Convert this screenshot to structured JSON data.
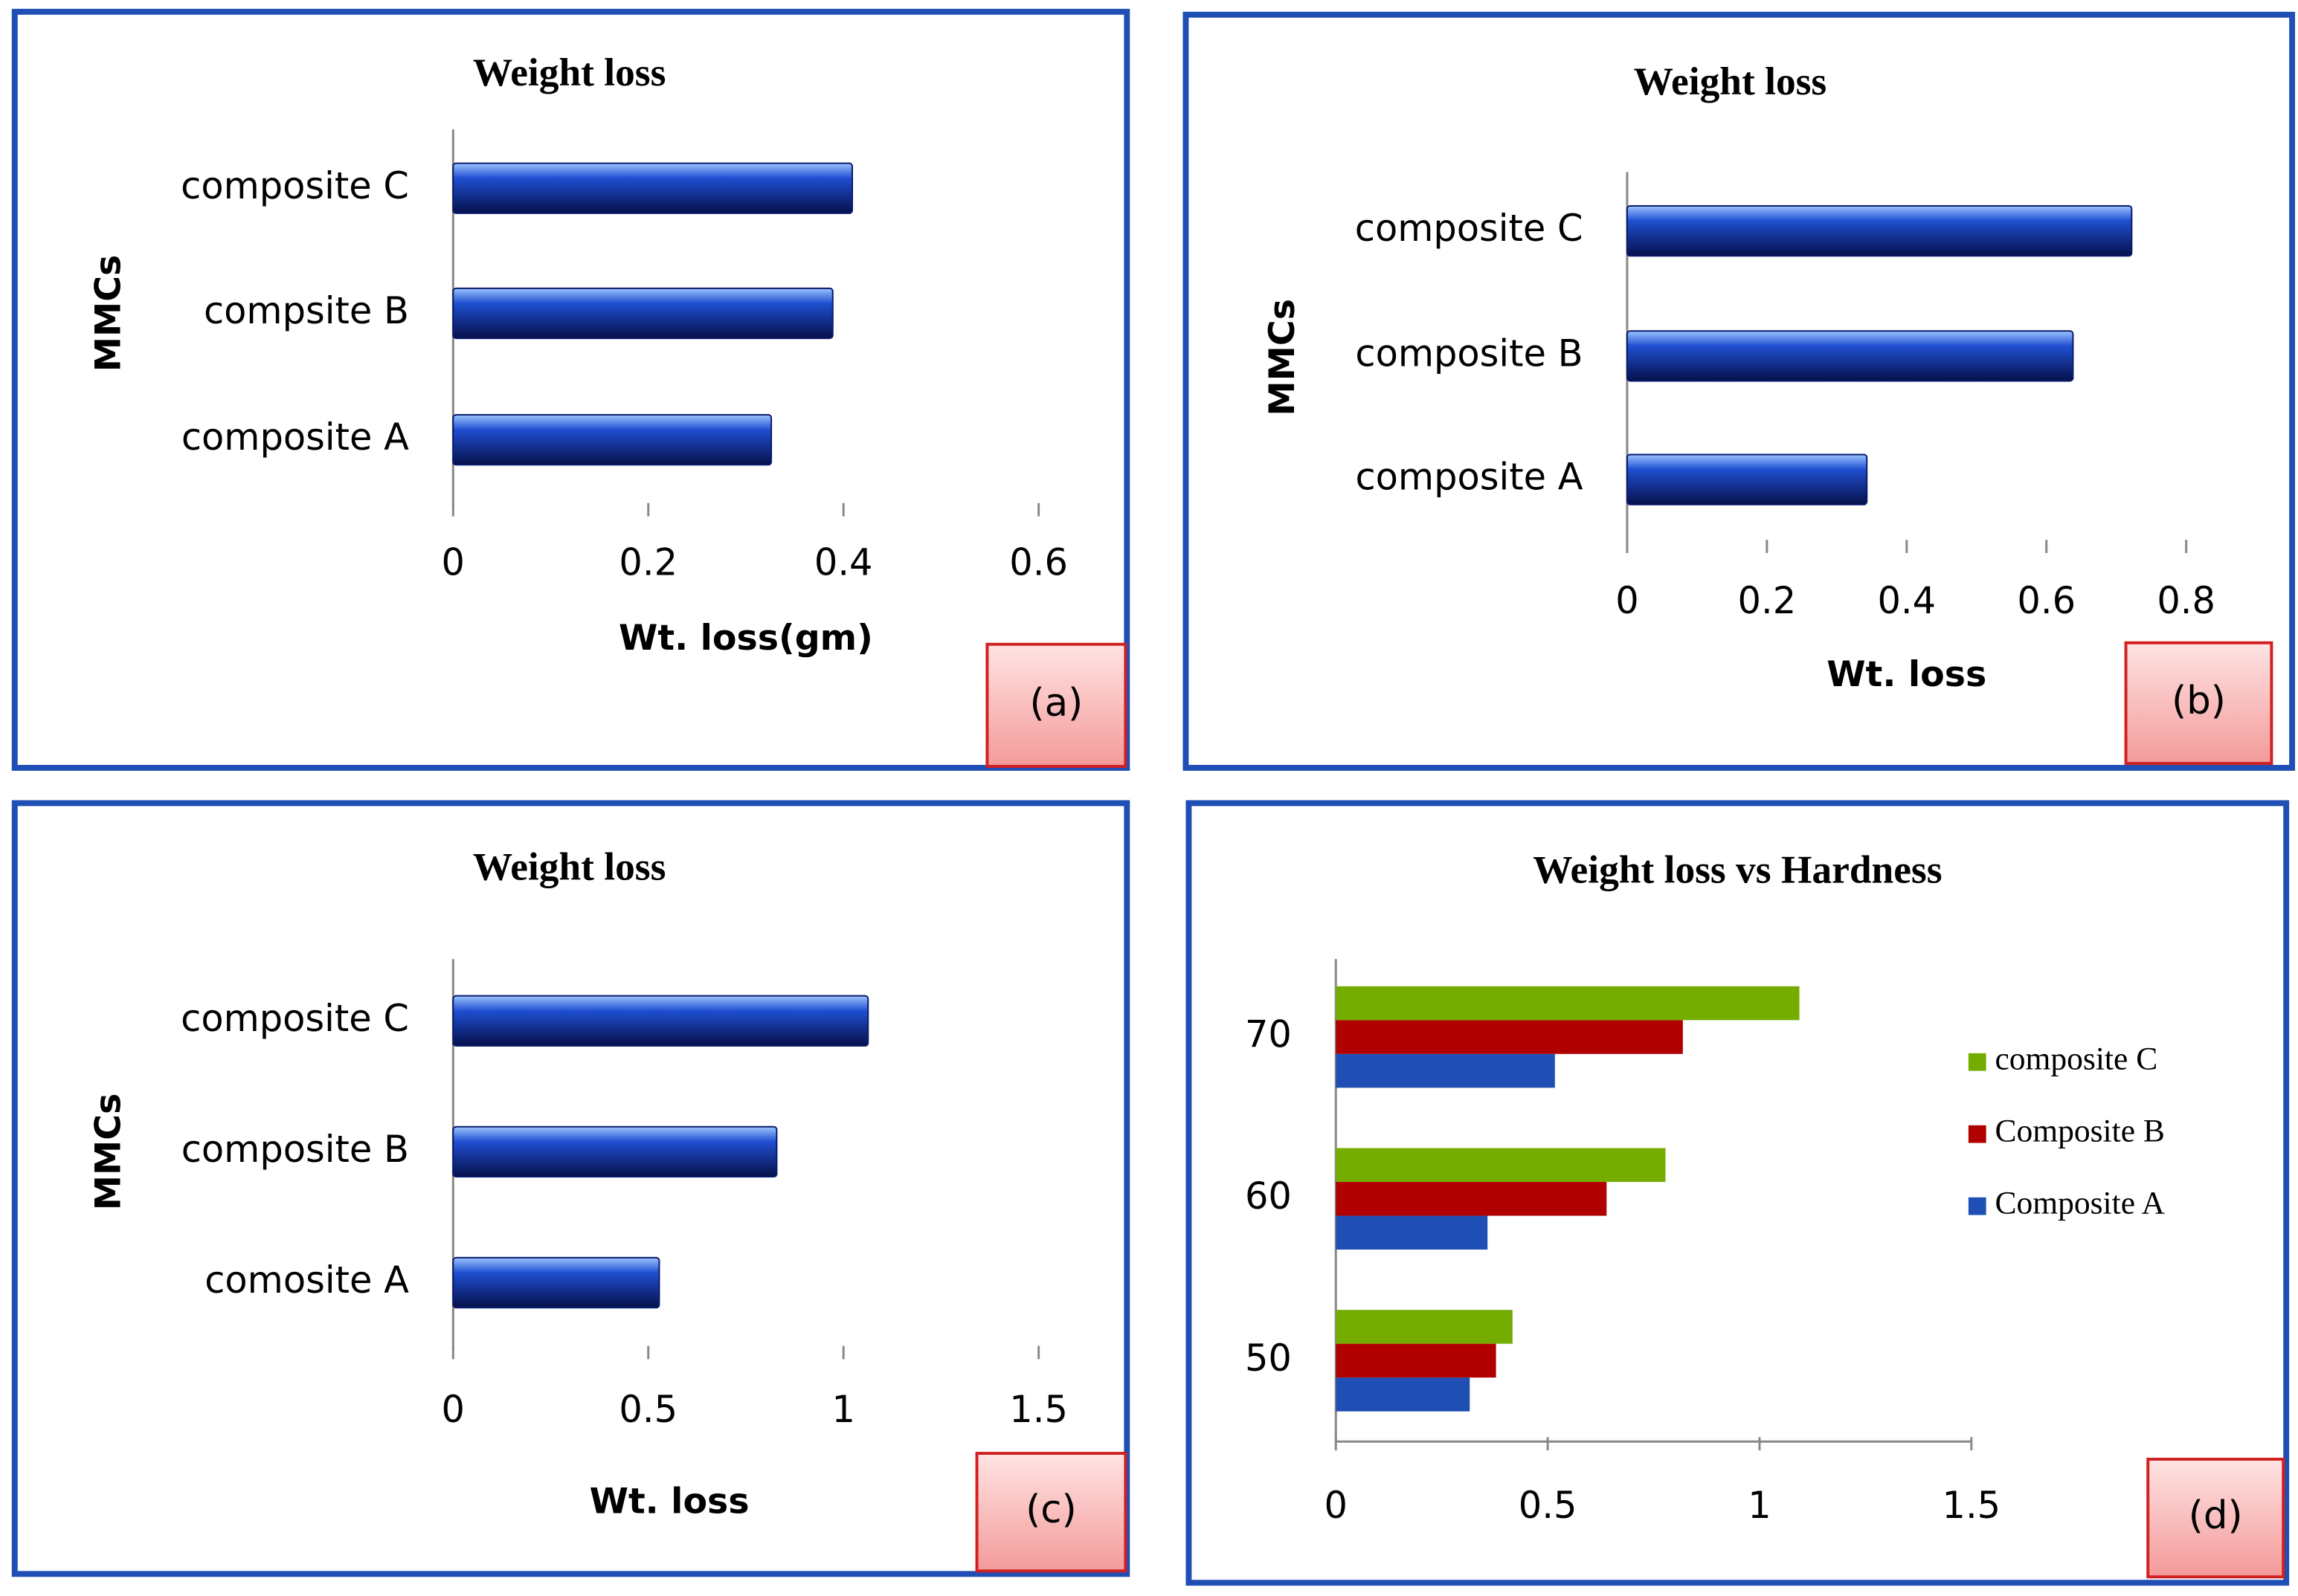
{
  "chart_data": [
    {
      "type": "bar",
      "title": "Weight loss",
      "xlabel": "Wt.  loss(gm)",
      "ylabel": "MMCs",
      "panel_label": "(a)",
      "categories": [
        "composite A",
        "compsite B",
        "composite C"
      ],
      "values": [
        0.326,
        0.389,
        0.409
      ],
      "color": "#1f4fd0",
      "xlim": [
        0,
        0.6
      ],
      "xticks": [
        0,
        0.2,
        0.4,
        0.6
      ]
    },
    {
      "type": "bar",
      "title": "Weight loss",
      "xlabel": "Wt.  loss",
      "ylabel": "MMCs",
      "panel_label": "(b)",
      "categories": [
        "composite A",
        "composite B",
        "composite C"
      ],
      "values": [
        0.343,
        0.638,
        0.722
      ],
      "color": "#1f4fd0",
      "xlim": [
        0,
        0.8
      ],
      "xticks": [
        0,
        0.2,
        0.4,
        0.6,
        0.8
      ]
    },
    {
      "type": "bar",
      "title": "Weight loss",
      "xlabel": "Wt.  loss",
      "ylabel": "MMCs",
      "panel_label": "(c)",
      "categories": [
        "comosite A",
        "composite B",
        "composite C"
      ],
      "values": [
        0.528,
        0.829,
        1.063
      ],
      "color": "#1f4fd0",
      "xlim": [
        0,
        1.5
      ],
      "xticks": [
        0,
        0.5,
        1,
        1.5
      ]
    },
    {
      "type": "bar",
      "title": "Weight loss vs Hardness",
      "panel_label": "(d)",
      "categories": [
        "50",
        "60",
        "70"
      ],
      "series": [
        {
          "name": "Composite A",
          "color": "#1f4fb4",
          "values": [
            0.316,
            0.358,
            0.517
          ]
        },
        {
          "name": "Composite B",
          "color": "#b00000",
          "values": [
            0.378,
            0.639,
            0.819
          ]
        },
        {
          "name": "composite C",
          "color": "#74ac00",
          "values": [
            0.417,
            0.778,
            1.094
          ]
        }
      ],
      "xlim": [
        0,
        1.5
      ],
      "xticks": [
        0,
        0.5,
        1,
        1.5
      ]
    }
  ]
}
